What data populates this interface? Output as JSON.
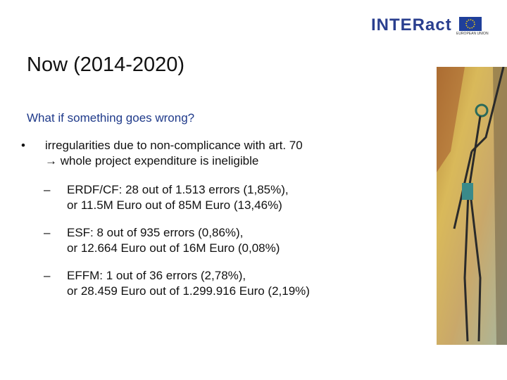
{
  "header": {
    "logo": "INTERact",
    "flag_caption": "EUROPEAN UNION"
  },
  "title": "Now (2014-2020)",
  "subtitle": "What if something goes wrong?",
  "bullet": {
    "marker": "•",
    "lines": [
      "irregularities due to non-complicance with art. 70",
      "→ whole project expenditure is ineligible"
    ]
  },
  "sub_bullets": [
    {
      "marker": "–",
      "lines": [
        "ERDF/CF: 28 out of 1.513 errors (1,85%),",
        "or 11.5M Euro out of 85M Euro (13,46%)"
      ]
    },
    {
      "marker": "–",
      "lines": [
        "ESF: 8 out of 935 errors (0,86%),",
        "or 12.664 Euro out of 16M Euro (0,08%)"
      ]
    },
    {
      "marker": "–",
      "lines": [
        "EFFM: 1 out of 36 errors (2,78%),",
        "or 28.459 Euro out of 1.299.916 Euro (2,19%)"
      ]
    }
  ]
}
